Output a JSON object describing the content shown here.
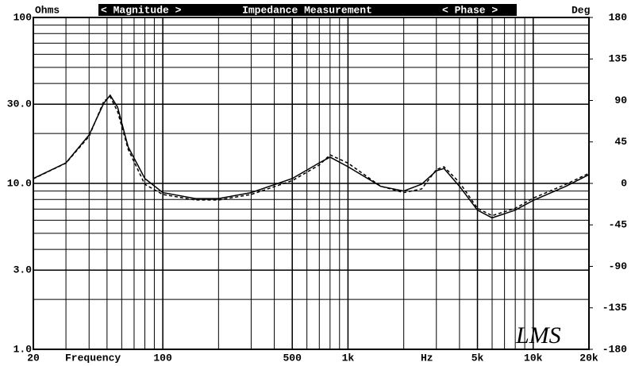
{
  "chart_data": {
    "type": "line",
    "title": "Impedance Measurement",
    "y_label": "Ohms",
    "y2_label": "Deg",
    "x_label_parts": [
      "Frequency",
      "Hz"
    ],
    "logo": "LMS",
    "log_x": true,
    "log_y": true,
    "grid": true,
    "x": [
      20,
      30,
      40,
      48,
      52,
      57,
      65,
      80,
      100,
      150,
      200,
      300,
      500,
      700,
      800,
      1000,
      1500,
      2000,
      2500,
      3000,
      3300,
      4000,
      5000,
      6000,
      8000,
      10000,
      15000,
      20000
    ],
    "series": [
      {
        "name": "< Magnitude >",
        "color": "#000000",
        "dash": false,
        "values": [
          10.7,
          13.3,
          19.6,
          30.4,
          34,
          28.8,
          16.6,
          10.7,
          8.8,
          8.1,
          8.1,
          8.8,
          10.7,
          13.3,
          14.4,
          12.6,
          9.6,
          9.0,
          9.9,
          11.9,
          12.3,
          9.6,
          6.9,
          6.2,
          6.9,
          7.9,
          9.6,
          11.3
        ]
      },
      {
        "name": "< Phase >",
        "color": "#000000",
        "dash": true,
        "axis": "y2",
        "values": [
          5,
          22,
          51,
          89,
          94,
          78,
          37,
          -1,
          -12,
          -18,
          -18,
          -12,
          3,
          20,
          31,
          22,
          -3,
          -10,
          -6,
          15,
          18,
          1,
          -27,
          -35,
          -27,
          -16,
          -1,
          11
        ]
      }
    ],
    "xlim": [
      20,
      20000
    ],
    "xticks": [
      20,
      100,
      500,
      {
        "value": 1000,
        "label": "1k"
      },
      {
        "value": 5000,
        "label": "5k"
      },
      {
        "value": 10000,
        "label": "10k"
      },
      {
        "value": 20000,
        "label": "20k"
      }
    ],
    "ylim": [
      1,
      100
    ],
    "yticks": [
      {
        "value": 1,
        "label": "1.0"
      },
      {
        "value": 3,
        "label": "3.0"
      },
      {
        "value": 10,
        "label": "10.0"
      },
      {
        "value": 30,
        "label": "30.0"
      },
      100
    ],
    "y2lim": [
      -180,
      180
    ],
    "y2ticks": [
      -180,
      -135,
      -90,
      -45,
      0,
      45,
      90,
      135,
      180
    ]
  }
}
